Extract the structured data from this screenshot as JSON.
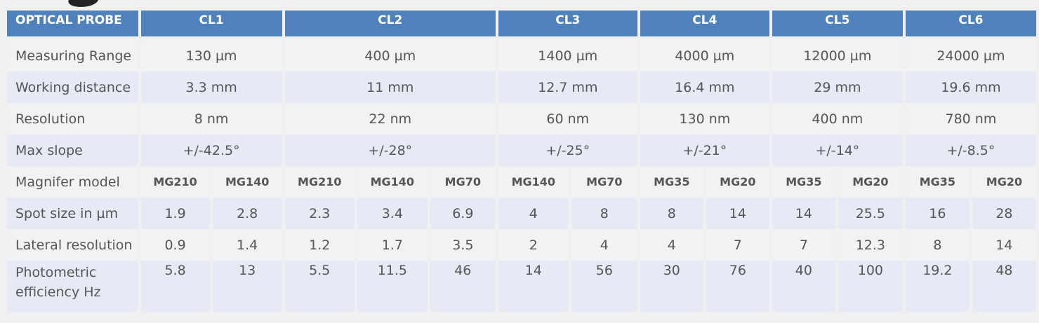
{
  "header": {
    "label": "OPTICAL PROBE",
    "probes": [
      "CL1",
      "CL2",
      "CL3",
      "CL4",
      "CL5",
      "CL6"
    ]
  },
  "rows": {
    "measuring_range": {
      "label": "Measuring Range",
      "values": [
        "130 µm",
        "400 µm",
        "1400 µm",
        "4000 µm",
        "12000 µm",
        "24000 µm"
      ]
    },
    "working_distance": {
      "label": "Working distance",
      "values": [
        "3.3 mm",
        "11 mm",
        "12.7 mm",
        "16.4 mm",
        "29 mm",
        "19.6 mm"
      ]
    },
    "resolution": {
      "label": "Resolution",
      "values": [
        "8 nm",
        "22 nm",
        "60 nm",
        "130 nm",
        "400 nm",
        "780 nm"
      ]
    },
    "max_slope": {
      "label": "Max slope",
      "values": [
        "+/-42.5°",
        "+/-28°",
        "+/-25°",
        "+/-21°",
        "+/-14°",
        "+/-8.5°"
      ]
    },
    "magnifier_model": {
      "label": "Magnifer model",
      "values": [
        "MG210",
        "MG140",
        "MG210",
        "MG140",
        "MG70",
        "MG140",
        "MG70",
        "MG35",
        "MG20",
        "MG35",
        "MG20",
        "MG35",
        "MG20"
      ]
    },
    "spot_size": {
      "label": "Spot size in µm",
      "values": [
        "1.9",
        "2.8",
        "2.3",
        "3.4",
        "6.9",
        "4",
        "8",
        "8",
        "14",
        "14",
        "25.5",
        "16",
        "28"
      ]
    },
    "lateral_resolution": {
      "label": "Lateral resolution",
      "values": [
        "0.9",
        "1.4",
        "1.2",
        "1.7",
        "3.5",
        "2",
        "4",
        "4",
        "7",
        "7",
        "12.3",
        "8",
        "14"
      ]
    },
    "photometric_efficiency": {
      "label_line1": "Photometric",
      "label_line2": "efficiency Hz",
      "values": [
        "5.8",
        "13",
        "5.5",
        "11.5",
        "46",
        "14",
        "56",
        "30",
        "76",
        "40",
        "100",
        "19.2",
        "48"
      ]
    }
  }
}
